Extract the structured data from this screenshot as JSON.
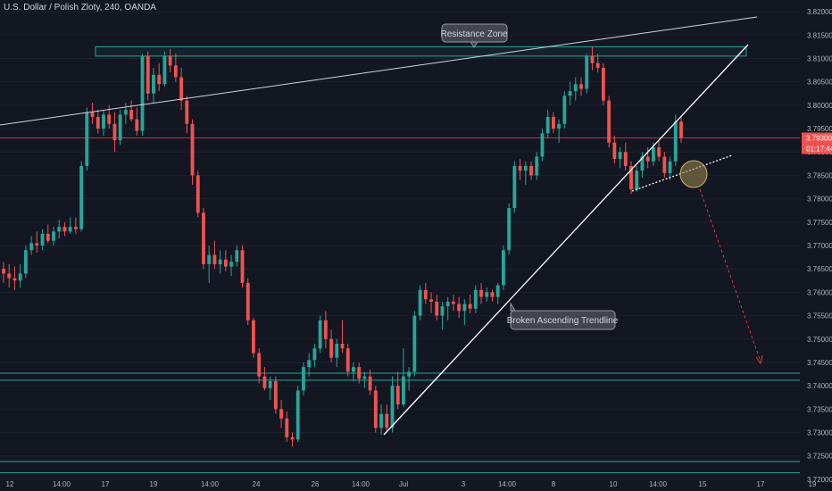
{
  "header": {
    "title": "U.S. Dollar / Polish Zloty, 240, OANDA"
  },
  "chart_data": {
    "type": "candlestick",
    "title": "U.S. Dollar / Polish Zloty, 240, OANDA",
    "ylim": [
      3.7175,
      3.8225
    ],
    "y_ticks": [
      "3.82000",
      "3.81500",
      "3.81000",
      "3.80500",
      "3.80000",
      "3.79500",
      "3.79000",
      "3.78500",
      "3.78000",
      "3.77500",
      "3.77000",
      "3.76500",
      "3.76000",
      "3.75500",
      "3.75000",
      "3.74500",
      "3.74000",
      "3.73500",
      "3.73000",
      "3.72500",
      "3.72000"
    ],
    "x_ticks": [
      "12",
      "14:00",
      "17",
      "19",
      "14:00",
      "24",
      "26",
      "14:00",
      "Jul",
      "3",
      "14:00",
      "8",
      "10",
      "14:00",
      "15",
      "17",
      "19"
    ],
    "price_label": {
      "value": "3.79300",
      "countdown": "01:17:44"
    },
    "annotations": [
      {
        "text": "Resistance Zone"
      },
      {
        "text": "Broken Ascending Trendline"
      }
    ],
    "resistance_zone": [
      3.8105,
      3.8125
    ],
    "support_zone_1": [
      3.7412,
      3.7427
    ],
    "support_zone_2": [
      3.7214,
      3.7238
    ],
    "current_price": 3.793,
    "candles": [
      {
        "o": 3.765,
        "h": 3.7665,
        "l": 3.762,
        "c": 3.764
      },
      {
        "o": 3.764,
        "h": 3.766,
        "l": 3.761,
        "c": 3.763
      },
      {
        "o": 3.763,
        "h": 3.7655,
        "l": 3.7605,
        "c": 3.7625
      },
      {
        "o": 3.7625,
        "h": 3.766,
        "l": 3.761,
        "c": 3.764
      },
      {
        "o": 3.764,
        "h": 3.77,
        "l": 3.763,
        "c": 3.769
      },
      {
        "o": 3.769,
        "h": 3.772,
        "l": 3.768,
        "c": 3.7705
      },
      {
        "o": 3.7705,
        "h": 3.773,
        "l": 3.7685,
        "c": 3.77
      },
      {
        "o": 3.77,
        "h": 3.7735,
        "l": 3.769,
        "c": 3.7725
      },
      {
        "o": 3.7725,
        "h": 3.7745,
        "l": 3.7705,
        "c": 3.771
      },
      {
        "o": 3.771,
        "h": 3.774,
        "l": 3.77,
        "c": 3.773
      },
      {
        "o": 3.773,
        "h": 3.7755,
        "l": 3.7715,
        "c": 3.774
      },
      {
        "o": 3.774,
        "h": 3.775,
        "l": 3.772,
        "c": 3.773
      },
      {
        "o": 3.773,
        "h": 3.776,
        "l": 3.7725,
        "c": 3.774
      },
      {
        "o": 3.774,
        "h": 3.776,
        "l": 3.7725,
        "c": 3.7735
      },
      {
        "o": 3.7735,
        "h": 3.788,
        "l": 3.773,
        "c": 3.787
      },
      {
        "o": 3.787,
        "h": 3.7995,
        "l": 3.786,
        "c": 3.7985
      },
      {
        "o": 3.7985,
        "h": 3.8005,
        "l": 3.796,
        "c": 3.7975
      },
      {
        "o": 3.7975,
        "h": 3.799,
        "l": 3.794,
        "c": 3.795
      },
      {
        "o": 3.795,
        "h": 3.799,
        "l": 3.7935,
        "c": 3.798
      },
      {
        "o": 3.798,
        "h": 3.8,
        "l": 3.795,
        "c": 3.796
      },
      {
        "o": 3.796,
        "h": 3.7985,
        "l": 3.79,
        "c": 3.7925
      },
      {
        "o": 3.7925,
        "h": 3.799,
        "l": 3.7915,
        "c": 3.798
      },
      {
        "o": 3.798,
        "h": 3.8005,
        "l": 3.796,
        "c": 3.799
      },
      {
        "o": 3.799,
        "h": 3.801,
        "l": 3.7965,
        "c": 3.797
      },
      {
        "o": 3.797,
        "h": 3.7995,
        "l": 3.7935,
        "c": 3.7945
      },
      {
        "o": 3.7945,
        "h": 3.811,
        "l": 3.7935,
        "c": 3.8105
      },
      {
        "o": 3.8105,
        "h": 3.8115,
        "l": 3.801,
        "c": 3.8025
      },
      {
        "o": 3.8025,
        "h": 3.808,
        "l": 3.8005,
        "c": 3.8065
      },
      {
        "o": 3.8065,
        "h": 3.809,
        "l": 3.803,
        "c": 3.8045
      },
      {
        "o": 3.8045,
        "h": 3.8115,
        "l": 3.804,
        "c": 3.8105
      },
      {
        "o": 3.8105,
        "h": 3.812,
        "l": 3.807,
        "c": 3.8085
      },
      {
        "o": 3.8085,
        "h": 3.811,
        "l": 3.805,
        "c": 3.806
      },
      {
        "o": 3.806,
        "h": 3.808,
        "l": 3.799,
        "c": 3.801
      },
      {
        "o": 3.801,
        "h": 3.802,
        "l": 3.794,
        "c": 3.796
      },
      {
        "o": 3.796,
        "h": 3.797,
        "l": 3.783,
        "c": 3.785
      },
      {
        "o": 3.785,
        "h": 3.786,
        "l": 3.776,
        "c": 3.777
      },
      {
        "o": 3.777,
        "h": 3.778,
        "l": 3.765,
        "c": 3.766
      },
      {
        "o": 3.766,
        "h": 3.77,
        "l": 3.762,
        "c": 3.768
      },
      {
        "o": 3.768,
        "h": 3.771,
        "l": 3.765,
        "c": 3.766
      },
      {
        "o": 3.766,
        "h": 3.769,
        "l": 3.764,
        "c": 3.767
      },
      {
        "o": 3.767,
        "h": 3.769,
        "l": 3.7645,
        "c": 3.7655
      },
      {
        "o": 3.7655,
        "h": 3.768,
        "l": 3.7635,
        "c": 3.7665
      },
      {
        "o": 3.7665,
        "h": 3.77,
        "l": 3.7655,
        "c": 3.769
      },
      {
        "o": 3.769,
        "h": 3.77,
        "l": 3.761,
        "c": 3.762
      },
      {
        "o": 3.762,
        "h": 3.763,
        "l": 3.753,
        "c": 3.754
      },
      {
        "o": 3.754,
        "h": 3.7545,
        "l": 3.746,
        "c": 3.747
      },
      {
        "o": 3.747,
        "h": 3.748,
        "l": 3.7405,
        "c": 3.742
      },
      {
        "o": 3.742,
        "h": 3.744,
        "l": 3.739,
        "c": 3.7395
      },
      {
        "o": 3.7395,
        "h": 3.742,
        "l": 3.737,
        "c": 3.741
      },
      {
        "o": 3.741,
        "h": 3.742,
        "l": 3.734,
        "c": 3.735
      },
      {
        "o": 3.735,
        "h": 3.737,
        "l": 3.731,
        "c": 3.733
      },
      {
        "o": 3.733,
        "h": 3.7345,
        "l": 3.728,
        "c": 3.729
      },
      {
        "o": 3.729,
        "h": 3.73,
        "l": 3.727,
        "c": 3.7285
      },
      {
        "o": 3.7285,
        "h": 3.74,
        "l": 3.728,
        "c": 3.739
      },
      {
        "o": 3.739,
        "h": 3.745,
        "l": 3.738,
        "c": 3.744
      },
      {
        "o": 3.744,
        "h": 3.747,
        "l": 3.742,
        "c": 3.7455
      },
      {
        "o": 3.7455,
        "h": 3.749,
        "l": 3.744,
        "c": 3.748
      },
      {
        "o": 3.748,
        "h": 3.755,
        "l": 3.747,
        "c": 3.754
      },
      {
        "o": 3.754,
        "h": 3.756,
        "l": 3.748,
        "c": 3.75
      },
      {
        "o": 3.75,
        "h": 3.752,
        "l": 3.745,
        "c": 3.746
      },
      {
        "o": 3.746,
        "h": 3.75,
        "l": 3.744,
        "c": 3.749
      },
      {
        "o": 3.749,
        "h": 3.754,
        "l": 3.747,
        "c": 3.748
      },
      {
        "o": 3.748,
        "h": 3.749,
        "l": 3.742,
        "c": 3.743
      },
      {
        "o": 3.743,
        "h": 3.745,
        "l": 3.741,
        "c": 3.744
      },
      {
        "o": 3.744,
        "h": 3.745,
        "l": 3.7405,
        "c": 3.7415
      },
      {
        "o": 3.7415,
        "h": 3.743,
        "l": 3.7395,
        "c": 3.742
      },
      {
        "o": 3.742,
        "h": 3.7435,
        "l": 3.738,
        "c": 3.739
      },
      {
        "o": 3.739,
        "h": 3.74,
        "l": 3.73,
        "c": 3.731
      },
      {
        "o": 3.731,
        "h": 3.736,
        "l": 3.7295,
        "c": 3.734
      },
      {
        "o": 3.734,
        "h": 3.736,
        "l": 3.73,
        "c": 3.731
      },
      {
        "o": 3.731,
        "h": 3.742,
        "l": 3.73,
        "c": 3.74
      },
      {
        "o": 3.74,
        "h": 3.743,
        "l": 3.735,
        "c": 3.736
      },
      {
        "o": 3.736,
        "h": 3.748,
        "l": 3.7355,
        "c": 3.742
      },
      {
        "o": 3.742,
        "h": 3.744,
        "l": 3.739,
        "c": 3.743
      },
      {
        "o": 3.743,
        "h": 3.756,
        "l": 3.742,
        "c": 3.755
      },
      {
        "o": 3.755,
        "h": 3.7615,
        "l": 3.754,
        "c": 3.7605
      },
      {
        "o": 3.7605,
        "h": 3.762,
        "l": 3.7575,
        "c": 3.7585
      },
      {
        "o": 3.7585,
        "h": 3.76,
        "l": 3.7555,
        "c": 3.758
      },
      {
        "o": 3.758,
        "h": 3.7595,
        "l": 3.754,
        "c": 3.755
      },
      {
        "o": 3.755,
        "h": 3.758,
        "l": 3.752,
        "c": 3.757
      },
      {
        "o": 3.757,
        "h": 3.759,
        "l": 3.754,
        "c": 3.758
      },
      {
        "o": 3.758,
        "h": 3.7595,
        "l": 3.756,
        "c": 3.7575
      },
      {
        "o": 3.7575,
        "h": 3.759,
        "l": 3.7545,
        "c": 3.756
      },
      {
        "o": 3.756,
        "h": 3.7585,
        "l": 3.753,
        "c": 3.7575
      },
      {
        "o": 3.7575,
        "h": 3.7595,
        "l": 3.7555,
        "c": 3.7565
      },
      {
        "o": 3.7565,
        "h": 3.7615,
        "l": 3.7555,
        "c": 3.7605
      },
      {
        "o": 3.7605,
        "h": 3.762,
        "l": 3.7575,
        "c": 3.759
      },
      {
        "o": 3.759,
        "h": 3.761,
        "l": 3.758,
        "c": 3.76
      },
      {
        "o": 3.76,
        "h": 3.7605,
        "l": 3.758,
        "c": 3.759
      },
      {
        "o": 3.759,
        "h": 3.762,
        "l": 3.7575,
        "c": 3.7615
      },
      {
        "o": 3.7615,
        "h": 3.77,
        "l": 3.7605,
        "c": 3.769
      },
      {
        "o": 3.769,
        "h": 3.779,
        "l": 3.768,
        "c": 3.778
      },
      {
        "o": 3.778,
        "h": 3.788,
        "l": 3.777,
        "c": 3.787
      },
      {
        "o": 3.787,
        "h": 3.7885,
        "l": 3.784,
        "c": 3.786
      },
      {
        "o": 3.786,
        "h": 3.788,
        "l": 3.783,
        "c": 3.787
      },
      {
        "o": 3.787,
        "h": 3.788,
        "l": 3.784,
        "c": 3.785
      },
      {
        "o": 3.785,
        "h": 3.79,
        "l": 3.784,
        "c": 3.789
      },
      {
        "o": 3.789,
        "h": 3.795,
        "l": 3.788,
        "c": 3.794
      },
      {
        "o": 3.794,
        "h": 3.799,
        "l": 3.793,
        "c": 3.7975
      },
      {
        "o": 3.7975,
        "h": 3.7985,
        "l": 3.794,
        "c": 3.795
      },
      {
        "o": 3.795,
        "h": 3.797,
        "l": 3.792,
        "c": 3.796
      },
      {
        "o": 3.796,
        "h": 3.803,
        "l": 3.795,
        "c": 3.802
      },
      {
        "o": 3.802,
        "h": 3.805,
        "l": 3.8,
        "c": 3.803
      },
      {
        "o": 3.803,
        "h": 3.806,
        "l": 3.801,
        "c": 3.8045
      },
      {
        "o": 3.8045,
        "h": 3.806,
        "l": 3.802,
        "c": 3.8035
      },
      {
        "o": 3.8035,
        "h": 3.811,
        "l": 3.8025,
        "c": 3.8105
      },
      {
        "o": 3.8105,
        "h": 3.8125,
        "l": 3.8075,
        "c": 3.809
      },
      {
        "o": 3.809,
        "h": 3.811,
        "l": 3.807,
        "c": 3.808
      },
      {
        "o": 3.808,
        "h": 3.809,
        "l": 3.8,
        "c": 3.801
      },
      {
        "o": 3.801,
        "h": 3.802,
        "l": 3.791,
        "c": 3.792
      },
      {
        "o": 3.792,
        "h": 3.7935,
        "l": 3.7875,
        "c": 3.7885
      },
      {
        "o": 3.7885,
        "h": 3.791,
        "l": 3.7865,
        "c": 3.79
      },
      {
        "o": 3.79,
        "h": 3.792,
        "l": 3.786,
        "c": 3.787
      },
      {
        "o": 3.787,
        "h": 3.788,
        "l": 3.781,
        "c": 3.782
      },
      {
        "o": 3.782,
        "h": 3.787,
        "l": 3.7815,
        "c": 3.786
      },
      {
        "o": 3.786,
        "h": 3.79,
        "l": 3.7845,
        "c": 3.789
      },
      {
        "o": 3.789,
        "h": 3.791,
        "l": 3.7865,
        "c": 3.788
      },
      {
        "o": 3.788,
        "h": 3.792,
        "l": 3.787,
        "c": 3.791
      },
      {
        "o": 3.791,
        "h": 3.7925,
        "l": 3.788,
        "c": 3.789
      },
      {
        "o": 3.789,
        "h": 3.79,
        "l": 3.7845,
        "c": 3.7855
      },
      {
        "o": 3.7855,
        "h": 3.789,
        "l": 3.784,
        "c": 3.788
      },
      {
        "o": 3.788,
        "h": 3.798,
        "l": 3.787,
        "c": 3.7965
      },
      {
        "o": 3.7965,
        "h": 3.7975,
        "l": 3.792,
        "c": 3.793
      }
    ]
  }
}
